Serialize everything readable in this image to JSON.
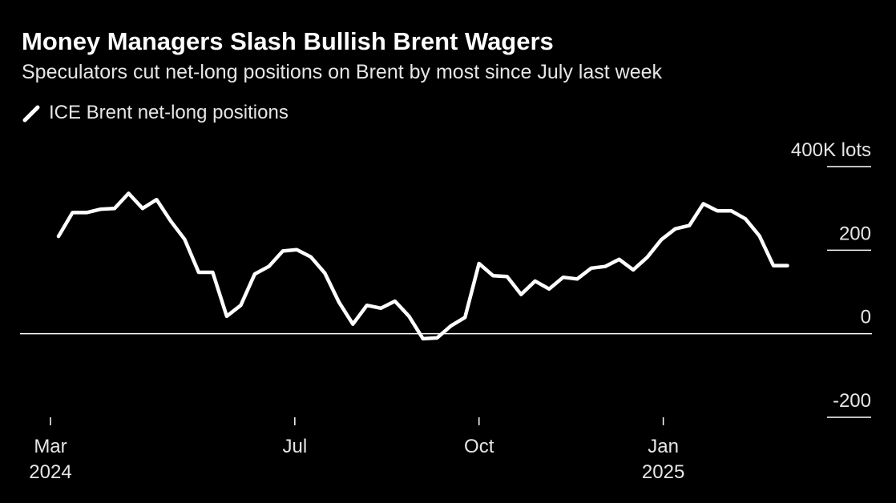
{
  "title": "Money Managers Slash Bullish Brent Wagers",
  "subtitle": "Speculators cut net-long positions on Brent by most since July last week",
  "colors": {
    "background": "#000000",
    "line": "#ffffff",
    "text": "#e6e6e6"
  },
  "chart_data": {
    "type": "line",
    "title": "Money Managers Slash Bullish Brent Wagers",
    "subtitle": "Speculators cut net-long positions on Brent by most since July last week",
    "legend": [
      "ICE Brent net-long positions"
    ],
    "legend_position": "top-left",
    "y_unit_label": "400K lots",
    "yticks": [
      400,
      200,
      0,
      -200
    ],
    "ytick_labels": [
      "400K lots",
      "200",
      "0",
      "-200"
    ],
    "ylim": [
      -200,
      400
    ],
    "xticks": [
      {
        "date": "2024-03-01",
        "label": "Mar",
        "year": "2024"
      },
      {
        "date": "2024-07-01",
        "label": "Jul",
        "year": ""
      },
      {
        "date": "2024-10-01",
        "label": "Oct",
        "year": ""
      },
      {
        "date": "2025-01-01",
        "label": "Jan",
        "year": "2025"
      }
    ],
    "xlim": [
      "2024-02-28",
      "2025-03-31"
    ],
    "grid": false,
    "series": [
      {
        "name": "ICE Brent net-long positions",
        "x": [
          "2024-03-05",
          "2024-03-12",
          "2024-03-19",
          "2024-03-26",
          "2024-04-02",
          "2024-04-09",
          "2024-04-16",
          "2024-04-23",
          "2024-04-30",
          "2024-05-07",
          "2024-05-14",
          "2024-05-21",
          "2024-05-28",
          "2024-06-04",
          "2024-06-11",
          "2024-06-18",
          "2024-06-25",
          "2024-07-02",
          "2024-07-09",
          "2024-07-16",
          "2024-07-23",
          "2024-07-30",
          "2024-08-06",
          "2024-08-13",
          "2024-08-20",
          "2024-08-27",
          "2024-09-03",
          "2024-09-10",
          "2024-09-17",
          "2024-09-24",
          "2024-10-01",
          "2024-10-08",
          "2024-10-15",
          "2024-10-22",
          "2024-10-29",
          "2024-11-05",
          "2024-11-12",
          "2024-11-19",
          "2024-11-26",
          "2024-12-03",
          "2024-12-10",
          "2024-12-17",
          "2024-12-24",
          "2024-12-31",
          "2025-01-07",
          "2025-01-14",
          "2025-01-21",
          "2025-01-28",
          "2025-02-04",
          "2025-02-11",
          "2025-02-18",
          "2025-02-25",
          "2025-03-04"
        ],
        "values": [
          233,
          290,
          290,
          298,
          300,
          336,
          300,
          321,
          270,
          226,
          147,
          147,
          42,
          68,
          143,
          161,
          198,
          201,
          184,
          145,
          76,
          23,
          68,
          61,
          78,
          42,
          -12,
          -10,
          19,
          39,
          168,
          139,
          137,
          94,
          126,
          107,
          135,
          131,
          157,
          161,
          178,
          153,
          183,
          225,
          251,
          259,
          311,
          294,
          294,
          275,
          234,
          163,
          163
        ]
      }
    ]
  }
}
